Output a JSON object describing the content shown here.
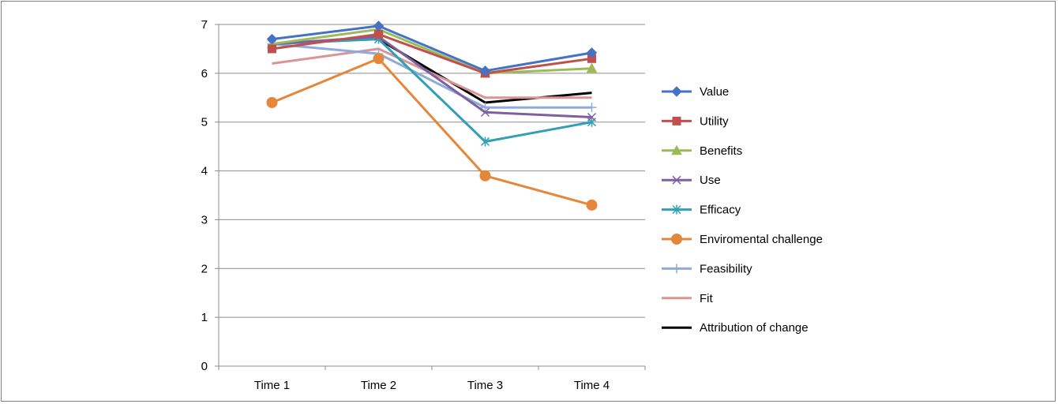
{
  "chart_data": {
    "type": "line",
    "categories": [
      "Time 1",
      "Time 2",
      "Time 3",
      "Time 4"
    ],
    "ylim": [
      0,
      7
    ],
    "yticks": [
      0,
      1,
      2,
      3,
      4,
      5,
      6,
      7
    ],
    "grid": true,
    "legend_position": "right",
    "series": [
      {
        "name": "Value",
        "values": [
          6.7,
          6.97,
          6.05,
          6.42
        ],
        "color": "#4472C4",
        "marker": "diamond",
        "width": 3
      },
      {
        "name": "Utility",
        "values": [
          6.5,
          6.8,
          6.0,
          6.3
        ],
        "color": "#C0504D",
        "marker": "square",
        "width": 3
      },
      {
        "name": "Benefits",
        "values": [
          6.6,
          6.9,
          6.0,
          6.1
        ],
        "color": "#9BBB59",
        "marker": "triangle",
        "width": 3
      },
      {
        "name": "Use",
        "values": [
          6.6,
          6.75,
          5.2,
          5.1
        ],
        "color": "#7F5F9F",
        "marker": "x",
        "width": 3
      },
      {
        "name": "Efficacy",
        "values": [
          6.6,
          6.7,
          4.6,
          5.0
        ],
        "color": "#31A0B4",
        "marker": "star",
        "width": 3
      },
      {
        "name": "Enviromental challenge",
        "values": [
          5.4,
          6.3,
          3.9,
          3.3
        ],
        "color": "#E4873A",
        "marker": "circle",
        "width": 3
      },
      {
        "name": "Feasibility",
        "values": [
          6.6,
          6.4,
          5.3,
          5.3
        ],
        "color": "#8FAADC",
        "marker": "plus",
        "width": 3
      },
      {
        "name": "Fit",
        "values": [
          6.2,
          6.5,
          5.5,
          5.5
        ],
        "color": "#D99594",
        "marker": "none",
        "width": 3
      },
      {
        "name": "Attribution of change",
        "values": [
          null,
          6.7,
          5.4,
          5.6
        ],
        "color": "#000000",
        "marker": "none",
        "width": 3
      }
    ]
  }
}
